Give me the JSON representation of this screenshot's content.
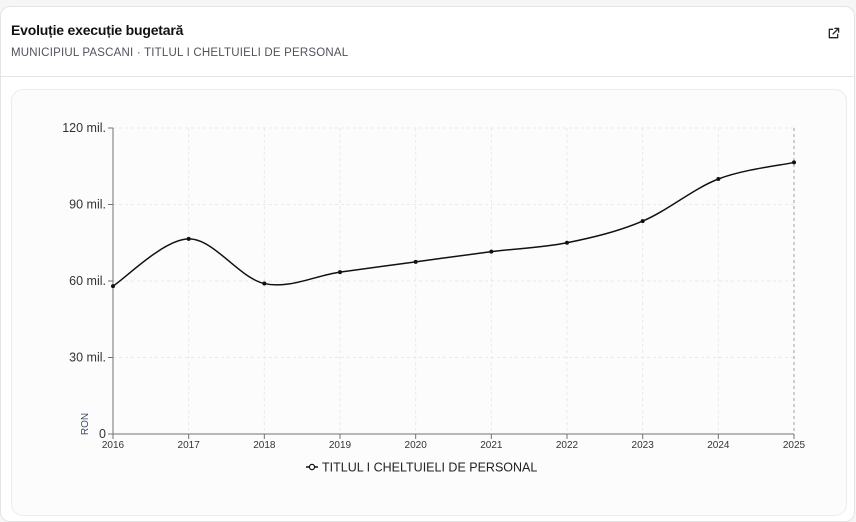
{
  "header": {
    "title": "Evoluție execuție bugetară",
    "subtitle": "MUNICIPIUL PASCANI · TITLUL I CHELTUIELI DE PERSONAL"
  },
  "icons": {
    "external_link": "external-link-icon"
  },
  "colors": {
    "line": "#111111",
    "axis": "#71717a",
    "grid": "#e9e9ec",
    "hover_line": "#a1a1aa"
  },
  "chart_data": {
    "type": "line",
    "x": [
      "2016",
      "2017",
      "2018",
      "2019",
      "2020",
      "2021",
      "2022",
      "2023",
      "2024",
      "2025"
    ],
    "series": [
      {
        "name": "TITLUL I CHELTUIELI DE PERSONAL",
        "values": [
          58,
          76.5,
          59,
          63.5,
          67.5,
          71.5,
          75,
          83.5,
          100,
          106.5
        ]
      }
    ],
    "ylim": [
      0,
      120
    ],
    "yticks": [
      0,
      30,
      60,
      90,
      120
    ],
    "ytick_labels": [
      "0",
      "30 mil.",
      "60 mil.",
      "90 mil.",
      "120 mil."
    ],
    "ylabel": "RON",
    "xlabel": "",
    "legend_position": "bottom-center",
    "grid": true
  }
}
